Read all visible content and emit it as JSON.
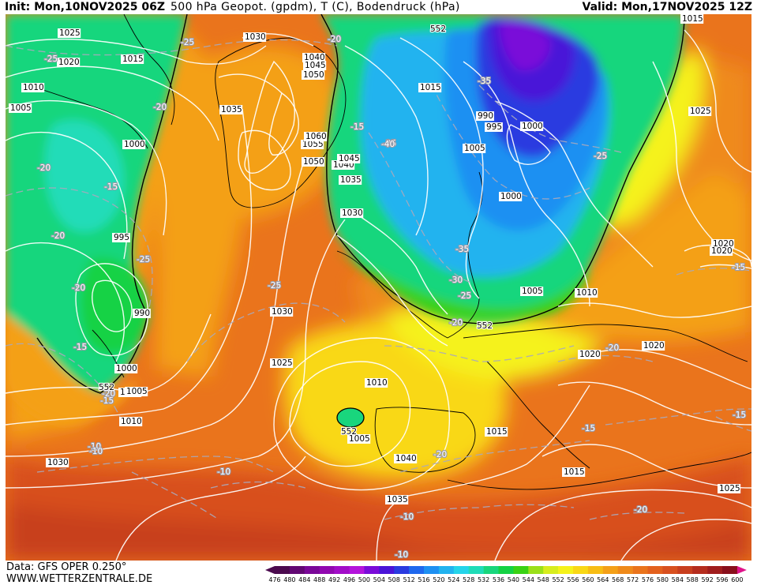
{
  "header": {
    "init_label": "Init: Mon,10NOV2025 06Z",
    "title": "500 hPa Geopot. (gpdm), T (C), Bodendruck (hPa)",
    "valid_label": "Valid: Mon,17NOV2025 12Z"
  },
  "footer": {
    "data_source": "Data: GFS OPER 0.250°",
    "website": "WWW.WETTERZENTRALE.DE"
  },
  "colorbar": {
    "ticks": [
      "476",
      "480",
      "484",
      "488",
      "492",
      "496",
      "500",
      "504",
      "508",
      "512",
      "516",
      "520",
      "524",
      "528",
      "532",
      "536",
      "540",
      "544",
      "548",
      "552",
      "556",
      "560",
      "564",
      "568",
      "572",
      "576",
      "580",
      "584",
      "588",
      "592",
      "596",
      "600"
    ],
    "colors": [
      "#4b0a4e",
      "#620873",
      "#7a0898",
      "#9108b0",
      "#a20dc8",
      "#b414dc",
      "#7a0bd9",
      "#4a14d8",
      "#2a3be0",
      "#1f68ee",
      "#1e90f2",
      "#22b3ef",
      "#25d4ea",
      "#20dcb8",
      "#19d67d",
      "#15d244",
      "#3ad214",
      "#9be01a",
      "#d7ed1e",
      "#f5f21a",
      "#f9d815",
      "#f7bd14",
      "#f4a018",
      "#ef8a1a",
      "#ea741c",
      "#e3611e",
      "#d8501f",
      "#c83f1f",
      "#b52d1e",
      "#a01d1d",
      "#880f1b"
    ],
    "under_color": "#4b0a4e",
    "over_color": "#e0128a"
  },
  "map": {
    "legend_hint": "geopotential colors",
    "pressure_labels": [
      "1025",
      "1020",
      "1015",
      "1010",
      "1005",
      "1000",
      "995",
      "990",
      "1030",
      "1035",
      "1040",
      "1045",
      "1050",
      "1055",
      "1060",
      "1030",
      "1035",
      "1040",
      "1045",
      "1050",
      "1030",
      "1025",
      "1015",
      "995",
      "990",
      "1000",
      "1005",
      "1000",
      "1005",
      "1010",
      "1020",
      "1020",
      "1020",
      "1025",
      "1015",
      "1010",
      "1005",
      "1000",
      "1010",
      "1010",
      "1005",
      "1015",
      "1015",
      "1020",
      "1025",
      "1030",
      "1035",
      "1040"
    ],
    "temperature_labels": [
      "-25",
      "-20",
      "-25",
      "-20",
      "-15",
      "-20",
      "-15",
      "-20",
      "-25",
      "-20",
      "-15",
      "-20",
      "-15",
      "-10",
      "-10",
      "-25",
      "-25",
      "-35",
      "-40",
      "-35",
      "-30",
      "-25",
      "-20",
      "-20",
      "-20",
      "-15",
      "-15",
      "-10",
      "-10",
      "-10",
      "-20",
      "-15",
      "-25"
    ],
    "height_labels": [
      "552",
      "552",
      "552",
      "552"
    ]
  }
}
